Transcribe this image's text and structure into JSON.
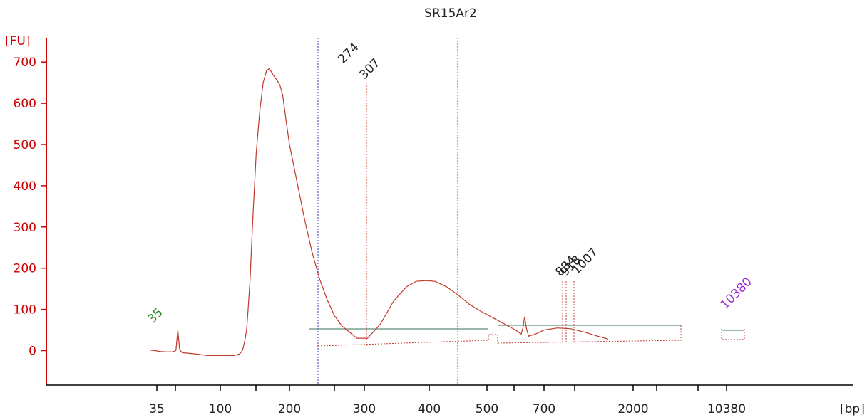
{
  "chart_data": {
    "type": "line",
    "title": "SR15Ar2",
    "ylabel": "[FU]",
    "xlabel": "[bp]",
    "ylim": [
      -90,
      760
    ],
    "y_ticks": [
      0,
      100,
      200,
      300,
      400,
      500,
      600,
      700
    ],
    "x_tick_labels": [
      "35",
      "100",
      "200",
      "300",
      "400",
      "500",
      "700",
      "2000",
      "10380"
    ],
    "x_unlabeled_ticks": 7,
    "grid": false,
    "colors": {
      "axis": "#cc0000",
      "trace": "#c0392b",
      "baseline": "#5a8f7b",
      "marker_low": "#2a8a2a",
      "marker_high": "#9b30d9"
    },
    "peak_labels": [
      {
        "text": "35",
        "marker": "low"
      },
      {
        "text": "274"
      },
      {
        "text": "307"
      },
      {
        "text": "884"
      },
      {
        "text": "918"
      },
      {
        "text": "1007"
      },
      {
        "text": "10380",
        "marker": "high"
      }
    ],
    "series": [
      {
        "values": [
          [
            -0.1,
            1
          ],
          [
            -0.03,
            0
          ],
          [
            0.05,
            -2
          ],
          [
            0.15,
            -3
          ],
          [
            0.25,
            -3
          ],
          [
            0.3,
            0
          ],
          [
            0.33,
            50
          ],
          [
            0.36,
            2
          ],
          [
            0.4,
            -5
          ],
          [
            0.6,
            -8
          ],
          [
            0.8,
            -12
          ],
          [
            1.0,
            -12
          ],
          [
            1.2,
            -12
          ],
          [
            1.28,
            -8
          ],
          [
            1.32,
            0
          ],
          [
            1.35,
            20
          ],
          [
            1.38,
            50
          ],
          [
            1.4,
            95
          ],
          [
            1.43,
            170
          ],
          [
            1.47,
            320
          ],
          [
            1.52,
            480
          ],
          [
            1.57,
            580
          ],
          [
            1.62,
            650
          ],
          [
            1.67,
            680
          ],
          [
            1.71,
            684
          ],
          [
            1.76,
            670
          ],
          [
            1.81,
            658
          ],
          [
            1.86,
            645
          ],
          [
            1.9,
            622
          ],
          [
            1.95,
            560
          ],
          [
            2.0,
            500
          ],
          [
            2.1,
            410
          ],
          [
            2.2,
            320
          ],
          [
            2.3,
            240
          ],
          [
            2.4,
            175
          ],
          [
            2.5,
            125
          ],
          [
            2.6,
            85
          ],
          [
            2.7,
            60
          ],
          [
            2.8,
            45
          ],
          [
            2.9,
            30
          ],
          [
            3.05,
            30
          ],
          [
            3.25,
            65
          ],
          [
            3.45,
            120
          ],
          [
            3.65,
            155
          ],
          [
            3.8,
            168
          ],
          [
            3.95,
            170
          ],
          [
            4.1,
            168
          ],
          [
            4.3,
            155
          ],
          [
            4.5,
            135
          ],
          [
            4.7,
            112
          ],
          [
            4.9,
            95
          ],
          [
            5.1,
            80
          ],
          [
            5.3,
            65
          ],
          [
            5.5,
            50
          ],
          [
            5.6,
            40
          ],
          [
            5.63,
            55
          ],
          [
            5.66,
            82
          ],
          [
            5.69,
            55
          ],
          [
            5.73,
            35
          ],
          [
            5.85,
            40
          ],
          [
            6.0,
            50
          ],
          [
            6.15,
            55
          ],
          [
            6.3,
            53
          ],
          [
            6.45,
            45
          ],
          [
            6.6,
            35
          ],
          [
            6.72,
            28
          ]
        ]
      }
    ]
  }
}
